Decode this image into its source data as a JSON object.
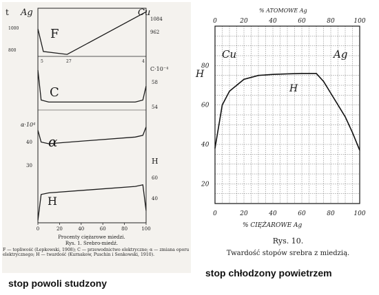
{
  "left_caption": "stop powoli studzony",
  "right_caption": "stop chłodzony powietrzem",
  "chart_data": [
    {
      "type": "line",
      "title": "Rys. 1. Srebro-miedź.",
      "xlabel": "Procenty ciężarowe miedzi.",
      "x_ticks": [
        "0",
        "20",
        "40",
        "60",
        "80",
        "100"
      ],
      "xlim": [
        0,
        100
      ],
      "left_labels": {
        "top_letter": "t",
        "element_left": "Ag",
        "t1000": "1000",
        "t800": "800",
        "alpha": "α·10⁴",
        "a40": "40",
        "a30": "30"
      },
      "right_labels": {
        "element_right": "Cu",
        "t1084": "1084",
        "t962": "962",
        "c_unit": "C·10⁻⁴",
        "c58": "58",
        "c54": "54",
        "h_letter": "H",
        "h60": "60",
        "h40": "40"
      },
      "axis_points": {
        "eutectic_x": "27",
        "left_mark": "5",
        "right_mark": "4"
      },
      "panel_letters": {
        "F": "F",
        "C": "C",
        "alpha": "α",
        "H": "H"
      },
      "legend_note": "F — topliwość (Łepkowski, 1908); C — przewodnictwo elektryczne; α — zmiana oporu elektrycznego; H — twardość (Kurnakow, Puschin i Senkowski, 1910).",
      "series": [
        {
          "name": "F",
          "x": [
            0,
            5,
            27,
            100
          ],
          "y": [
            962,
            800,
            779,
            1084
          ]
        },
        {
          "name": "C",
          "x": [
            0,
            3,
            10,
            50,
            90,
            97,
            100
          ],
          "y": [
            62,
            54.5,
            54,
            54,
            54,
            54.5,
            58
          ]
        },
        {
          "name": "α",
          "x": [
            0,
            3,
            10,
            50,
            90,
            97,
            100
          ],
          "y": [
            40,
            36.5,
            36,
            37,
            38,
            38.5,
            41
          ]
        },
        {
          "name": "H",
          "x": [
            0,
            3,
            10,
            50,
            90,
            97,
            100
          ],
          "y": [
            30,
            46,
            47,
            49,
            51,
            52,
            36
          ]
        }
      ]
    },
    {
      "type": "line",
      "title": "Rys. 10.",
      "subtitle": "Twardość stopów srebra z miedzią.",
      "xlabel": "% CIĘŻAROWE Ag",
      "x2label": "% ATOMOWE Ag",
      "ylabel": "H",
      "x": [
        0,
        5,
        10,
        20,
        30,
        40,
        50,
        60,
        70,
        75,
        80,
        85,
        90,
        95,
        100
      ],
      "values": [
        38,
        60,
        67,
        73,
        75,
        75.5,
        75.8,
        76,
        76,
        72,
        66,
        60,
        54,
        46,
        37
      ],
      "xlim": [
        0,
        100
      ],
      "ylim": [
        10,
        100
      ],
      "x_ticks": [
        "0",
        "20",
        "40",
        "60",
        "80",
        "100"
      ],
      "x2_ticks": [
        "0",
        "20",
        "40",
        "60",
        "80",
        "100"
      ],
      "y_ticks": [
        "20",
        "40",
        "60",
        "80"
      ],
      "inner_labels": {
        "left": "Cu",
        "right": "Ag",
        "curve": "H"
      },
      "grid": true
    }
  ]
}
